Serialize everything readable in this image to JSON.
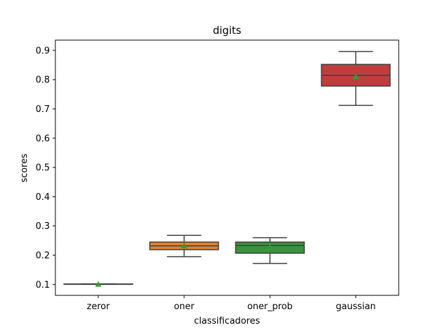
{
  "chart_data": {
    "type": "box",
    "title": "digits",
    "xlabel": "classificadores",
    "ylabel": "scores",
    "ylim": [
      0.063,
      0.935
    ],
    "yticks": [
      0.1,
      0.2,
      0.3,
      0.4,
      0.5,
      0.6,
      0.7,
      0.8,
      0.9
    ],
    "ytick_labels": [
      "0.1",
      "0.2",
      "0.3",
      "0.4",
      "0.5",
      "0.6",
      "0.7",
      "0.8",
      "0.9"
    ],
    "categories": [
      "zeror",
      "oner",
      "oner_prob",
      "gaussian"
    ],
    "boxes": [
      {
        "whisker_low": 0.101,
        "q1": 0.101,
        "median": 0.101,
        "q3": 0.102,
        "whisker_high": 0.102,
        "mean": 0.101,
        "color": "#3274a1"
      },
      {
        "whisker_low": 0.195,
        "q1": 0.219,
        "median": 0.232,
        "q3": 0.245,
        "whisker_high": 0.268,
        "mean": 0.232,
        "color": "#e1812c"
      },
      {
        "whisker_low": 0.172,
        "q1": 0.207,
        "median": 0.233,
        "q3": 0.245,
        "whisker_high": 0.26,
        "mean": 0.228,
        "color": "#3a923a"
      },
      {
        "whisker_low": 0.712,
        "q1": 0.778,
        "median": 0.815,
        "q3": 0.852,
        "whisker_high": 0.896,
        "mean": 0.81,
        "color": "#c03d3e"
      }
    ],
    "mean_marker_color": "#2ca02c",
    "line_color": "#3f3f3f",
    "grid": false,
    "legend": "none"
  }
}
